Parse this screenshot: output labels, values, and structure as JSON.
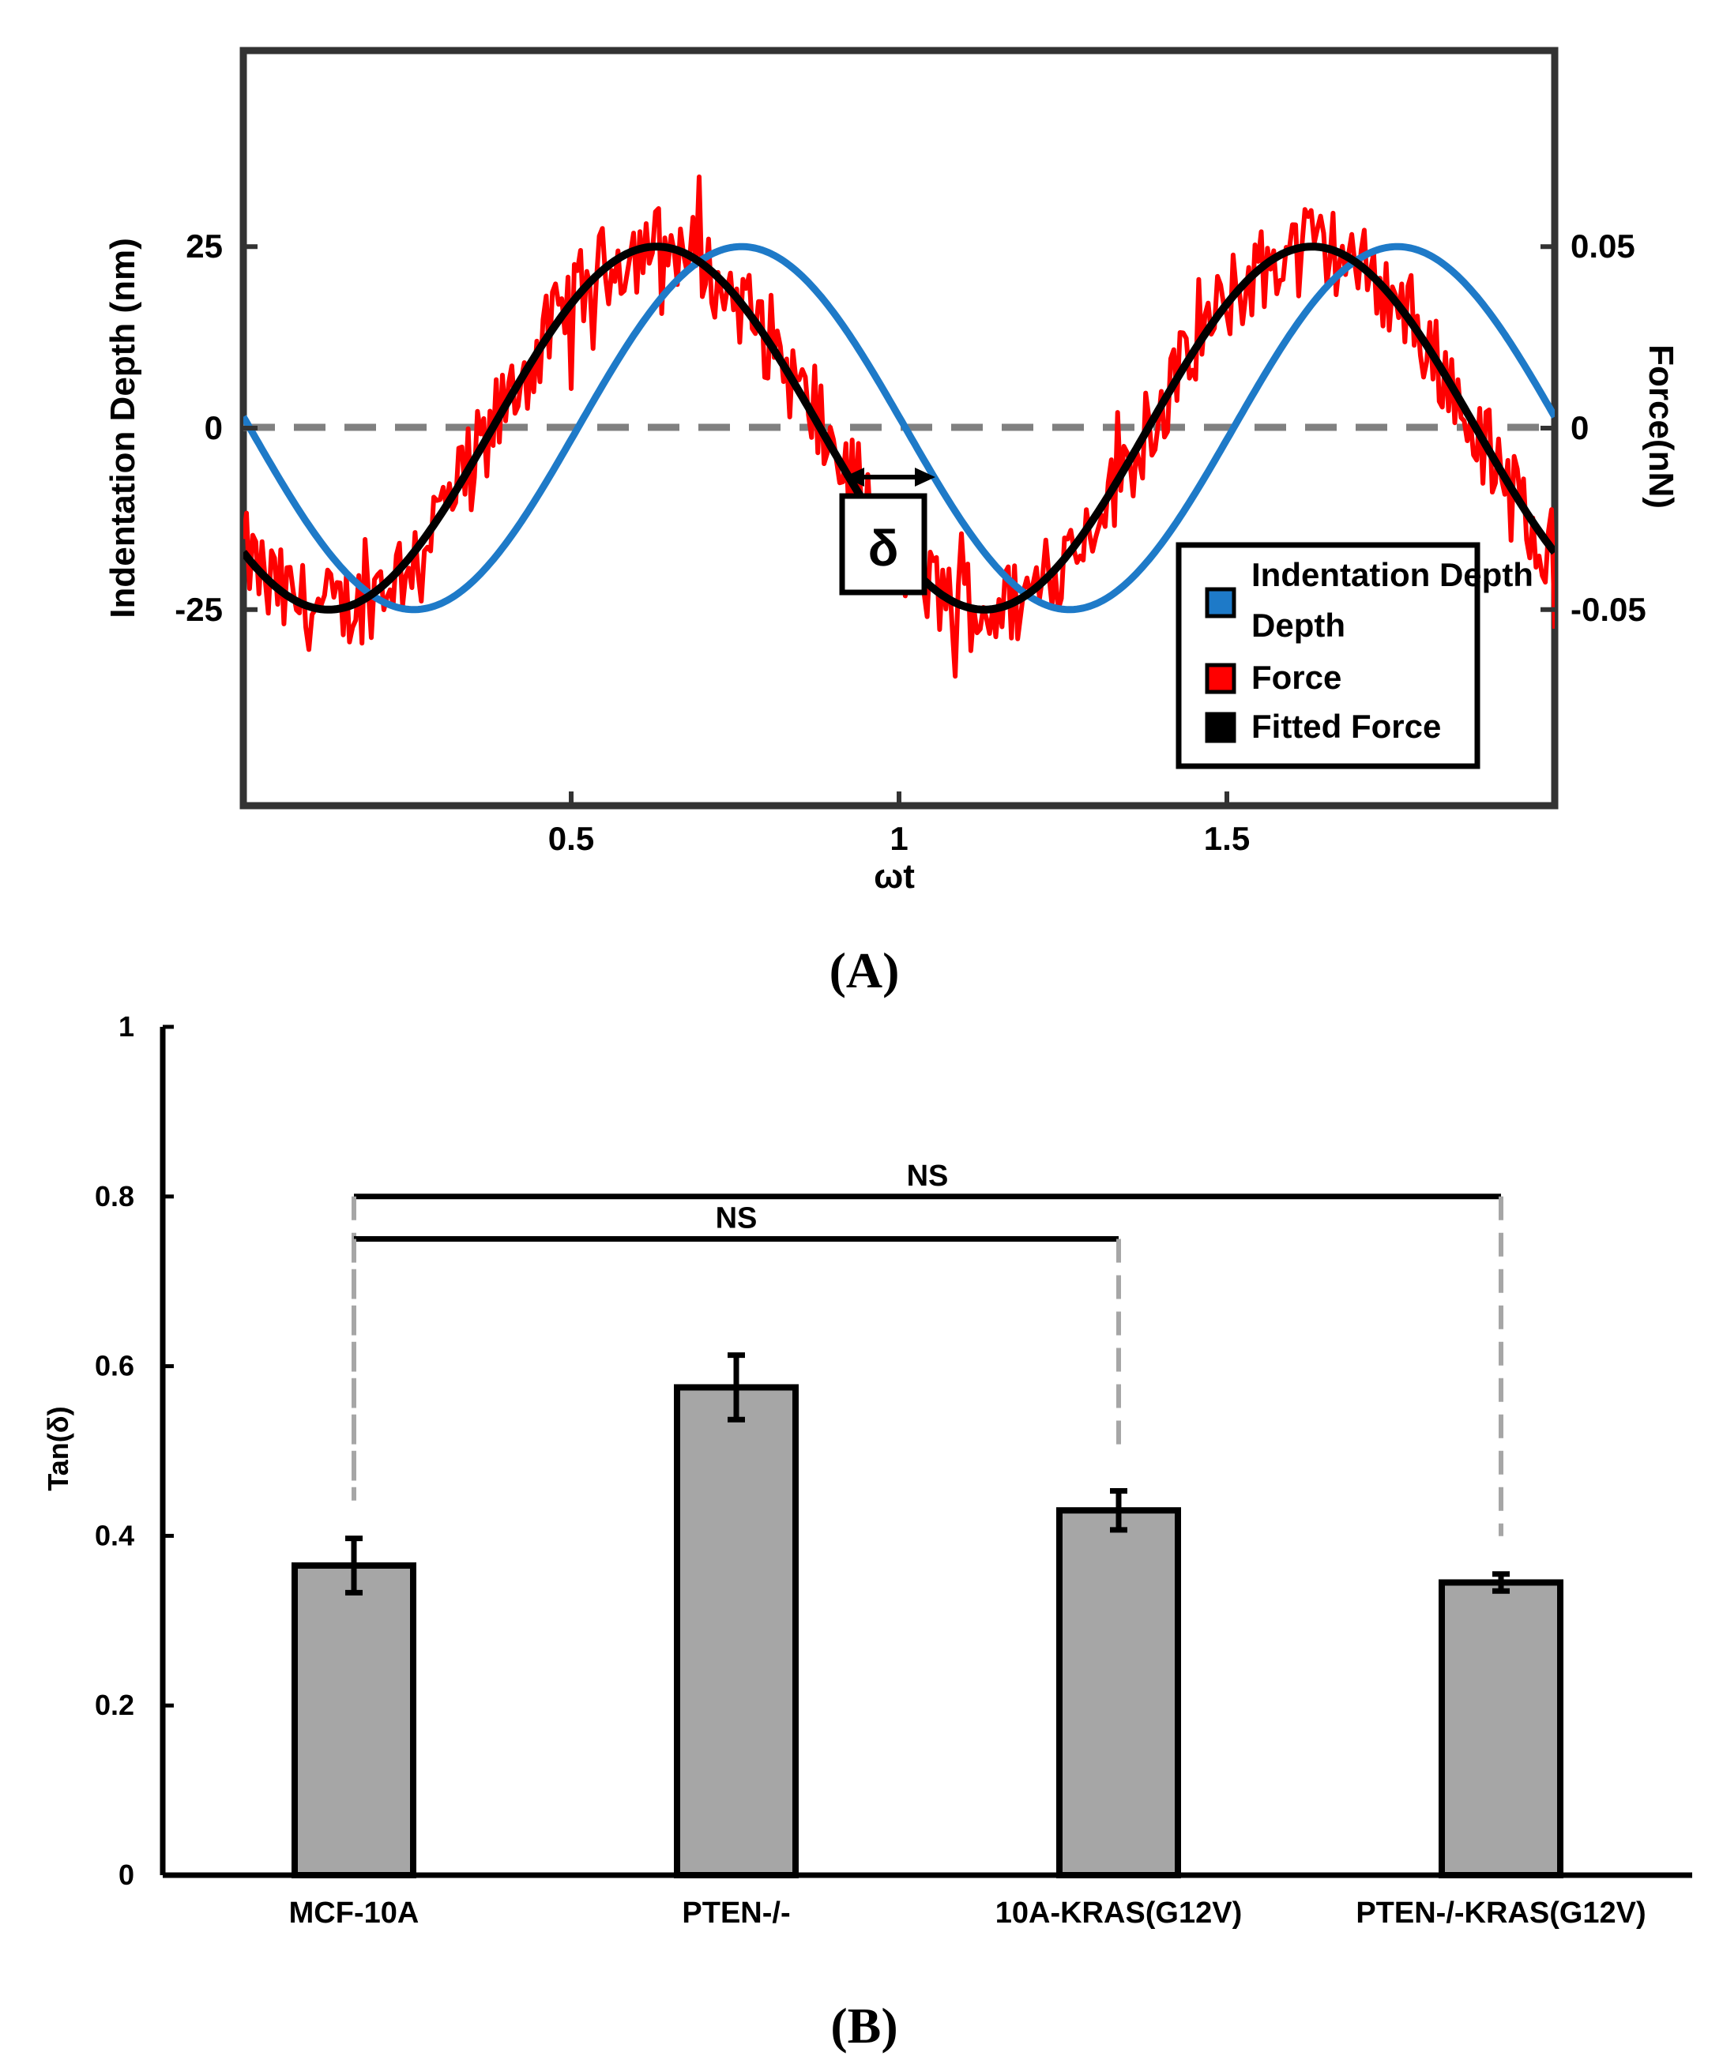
{
  "chart_data": [
    {
      "panel": "A",
      "type": "line",
      "panel_label": "(A)",
      "xlabel": "ωt",
      "ylabel_left": "Indentation Depth (nm)",
      "ylabel_right": "Force(nN)",
      "x_ticks": [
        "0.5",
        "1",
        "1.5"
      ],
      "x_tick_values": [
        0.5,
        1,
        1.5
      ],
      "xlim": [
        0,
        2
      ],
      "ylim_left": [
        -52,
        52
      ],
      "ylim_right": [
        -0.104,
        0.104
      ],
      "y_ticks_left": [
        "25",
        "0",
        "-25"
      ],
      "y_tick_values_left": [
        25,
        0,
        -25
      ],
      "y_ticks_right": [
        "0.05",
        "0",
        "-0.05"
      ],
      "y_tick_values_right": [
        0.05,
        0,
        -0.05
      ],
      "zero_line": true,
      "series": [
        {
          "name": "Indentation Depth",
          "color": "#1E7AC8",
          "amplitude": 25,
          "phase_peak": 0.76,
          "note": "sinusoid, sin(2πx)-like starting at 0"
        },
        {
          "name": "Force",
          "color": "#FF0000",
          "amplitude": 25,
          "phase_peak": 0.63,
          "noise": 6,
          "note": "noisy force signal"
        },
        {
          "name": "Fitted Force",
          "color": "#000000",
          "amplitude": 25,
          "phase_peak": 0.63
        }
      ],
      "legend": {
        "position": "bottom-right",
        "entries": [
          "Indentation Depth",
          "Force",
          "Fitted Force"
        ]
      },
      "annotation": "δ"
    },
    {
      "panel": "B",
      "type": "bar",
      "panel_label": "(B)",
      "categories": [
        "MCF-10A",
        "PTEN-/-",
        "10A-KRAS(G12V)",
        "PTEN-/-KRAS(G12V)"
      ],
      "values": [
        0.365,
        0.575,
        0.43,
        0.345
      ],
      "errors": [
        0.032,
        0.038,
        0.023,
        0.01
      ],
      "bar_color": "#A6A6A6",
      "ylabel": "Tan(δ)",
      "xlabel": "",
      "ylim": [
        0,
        1
      ],
      "y_ticks": [
        "0",
        "0.2",
        "0.4",
        "0.6",
        "0.8",
        "1"
      ],
      "y_tick_values": [
        0,
        0.2,
        0.4,
        0.6,
        0.8,
        1
      ],
      "significance": [
        {
          "from": 0,
          "to": 3,
          "label": "NS",
          "y": 0.8
        },
        {
          "from": 0,
          "to": 2,
          "label": "NS",
          "y": 0.75
        }
      ]
    }
  ]
}
